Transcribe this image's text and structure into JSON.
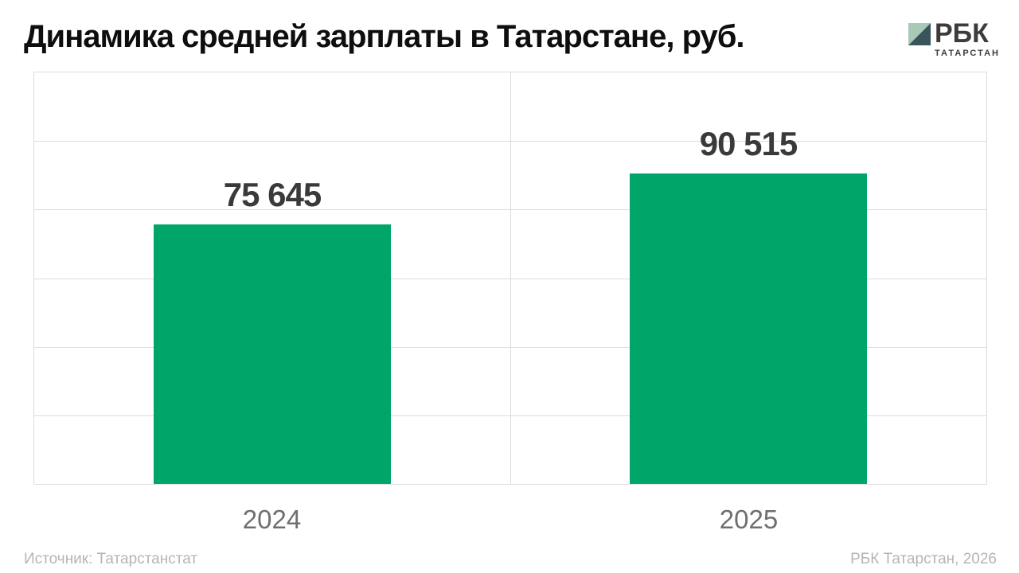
{
  "header": {
    "title": "Динамика средней зарплаты в Татарстане, руб.",
    "logo": {
      "brand": "РБК",
      "region": "ТАТАРСТАН",
      "square_light": "#a7c9b6",
      "square_dark": "#3a545c",
      "text_color": "#3c3c3c"
    }
  },
  "chart_data": {
    "type": "bar",
    "title": "Динамика средней зарплаты в Татарстане, руб.",
    "categories": [
      "2024",
      "2025"
    ],
    "values": [
      75645,
      90515
    ],
    "value_labels": [
      "75 645",
      "90 515"
    ],
    "xlabel": "",
    "ylabel": "",
    "ylim": [
      0,
      120000
    ],
    "grid_interval": 20000,
    "grid": true,
    "legend": false,
    "bar_color": "#00a56a",
    "grid_color": "#dcdcdc",
    "value_label_color": "#3a3a3a",
    "tick_label_color": "#6f6f6f"
  },
  "footer": {
    "source": "Источник: Татарстанстат",
    "credit": "РБК Татарстан, 2026"
  }
}
